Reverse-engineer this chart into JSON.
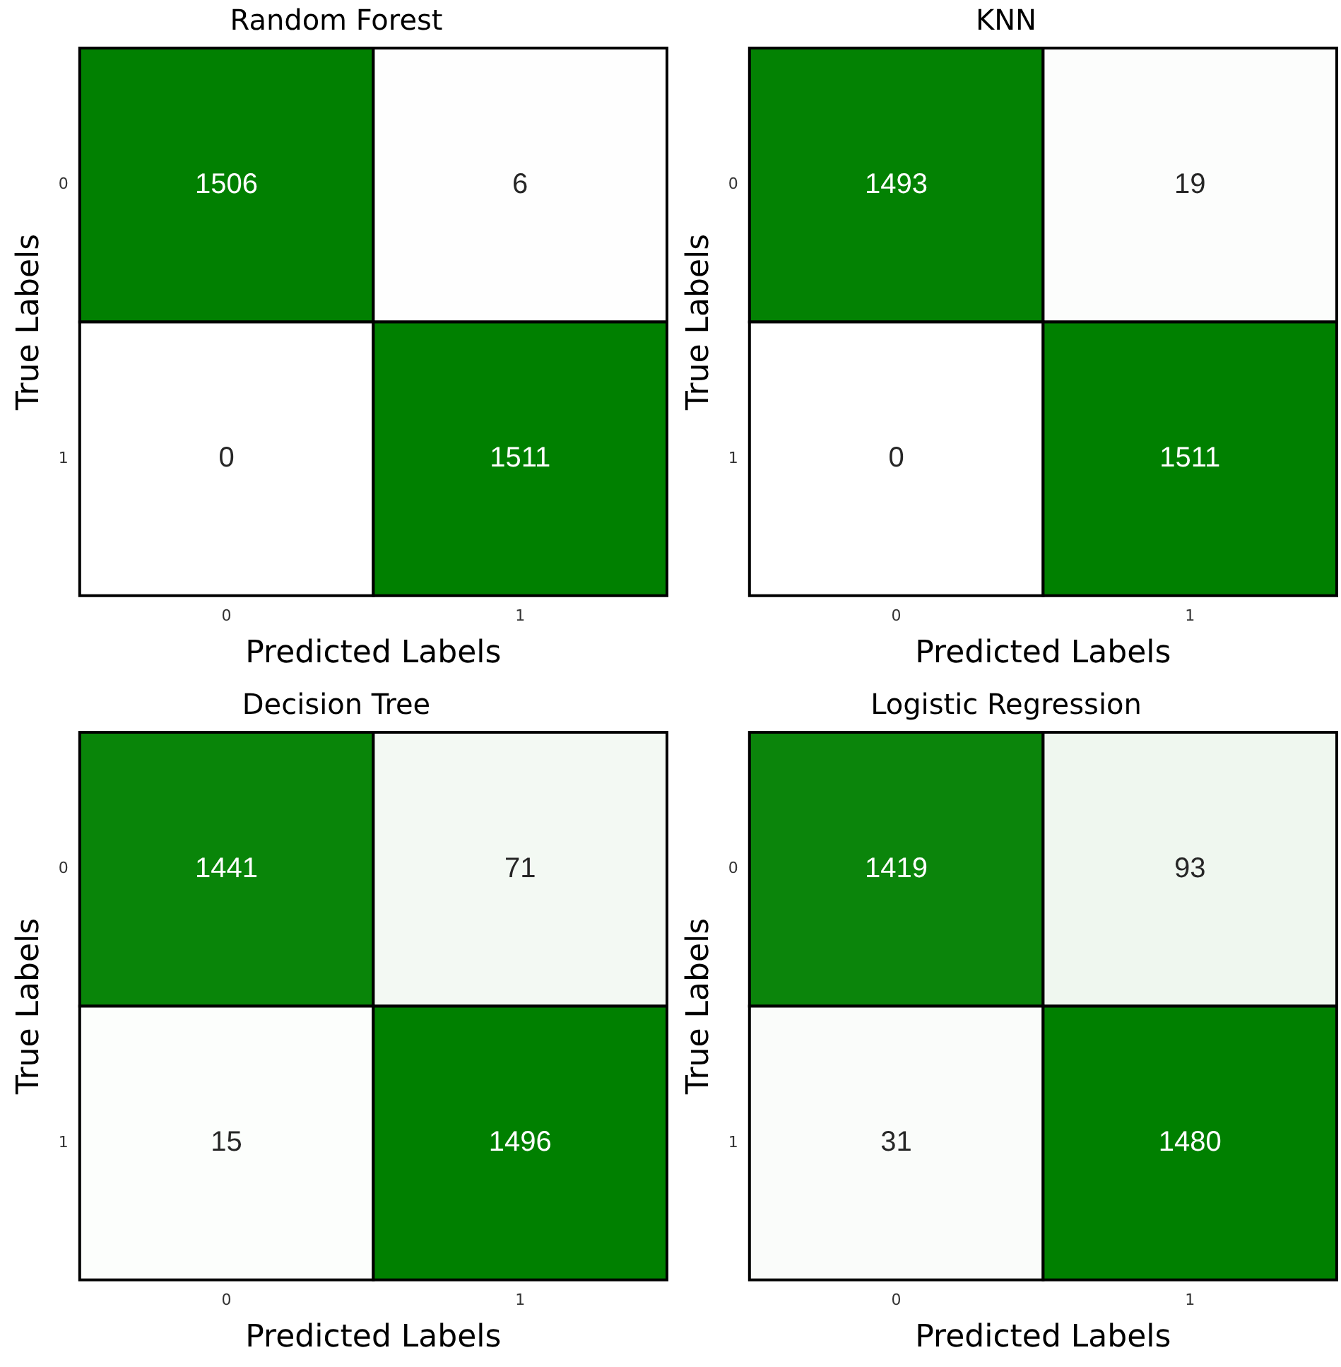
{
  "chart_data": [
    {
      "type": "heatmap",
      "title": "Random Forest",
      "xlabel": "Predicted Labels",
      "ylabel": "True Labels",
      "categories": [
        "0",
        "1"
      ],
      "y_categories": [
        "0",
        "1"
      ],
      "colors": [
        "#ffffff",
        "#008000"
      ],
      "data_labels": true,
      "cells": [
        [
          1506,
          6
        ],
        [
          0,
          1511
        ]
      ]
    },
    {
      "type": "heatmap",
      "title": "KNN",
      "xlabel": "Predicted Labels",
      "ylabel": "True Labels",
      "categories": [
        "0",
        "1"
      ],
      "y_categories": [
        "0",
        "1"
      ],
      "colors": [
        "#ffffff",
        "#008000"
      ],
      "data_labels": true,
      "cells": [
        [
          1493,
          19
        ],
        [
          0,
          1511
        ]
      ]
    },
    {
      "type": "heatmap",
      "title": "Decision Tree",
      "xlabel": "Predicted Labels",
      "ylabel": "True Labels",
      "categories": [
        "0",
        "1"
      ],
      "y_categories": [
        "0",
        "1"
      ],
      "colors": [
        "#ffffff",
        "#008000"
      ],
      "data_labels": true,
      "cells": [
        [
          1441,
          71
        ],
        [
          15,
          1496
        ]
      ]
    },
    {
      "type": "heatmap",
      "title": "Logistic Regression",
      "xlabel": "Predicted Labels",
      "ylabel": "True Labels",
      "categories": [
        "0",
        "1"
      ],
      "y_categories": [
        "0",
        "1"
      ],
      "colors": [
        "#ffffff",
        "#008000"
      ],
      "data_labels": true,
      "cells": [
        [
          1419,
          93
        ],
        [
          31,
          1480
        ]
      ]
    }
  ]
}
